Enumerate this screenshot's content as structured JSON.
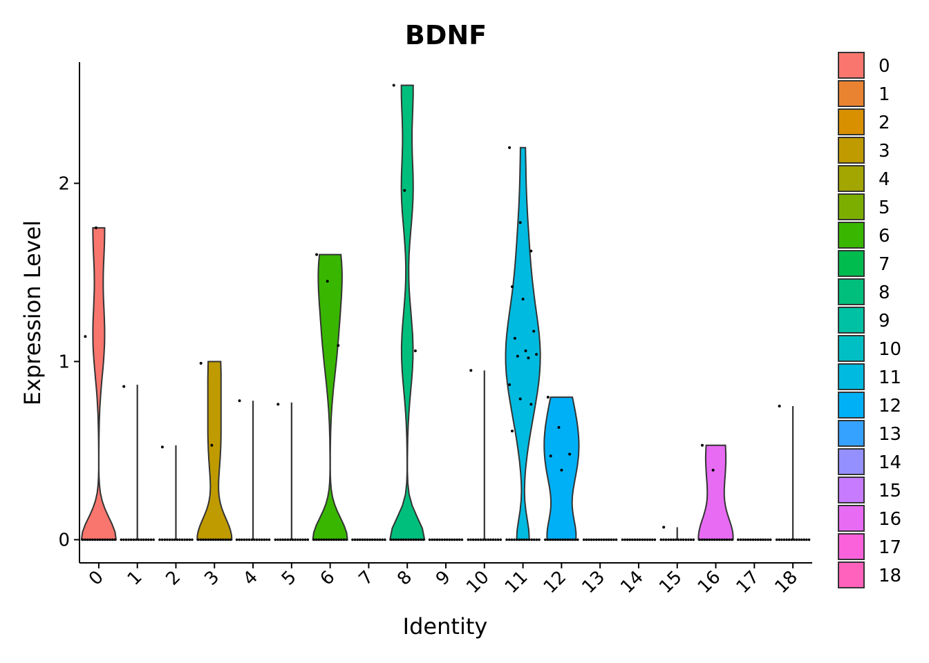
{
  "chart_data": {
    "type": "violin",
    "title": "BDNF",
    "xlabel": "Identity",
    "ylabel": "Expression Level",
    "ylim": [
      -0.13,
      2.68
    ],
    "yticks": [
      0,
      1,
      2
    ],
    "grid": false,
    "legend_position": "right",
    "categories": [
      "0",
      "1",
      "2",
      "3",
      "4",
      "5",
      "6",
      "7",
      "8",
      "9",
      "10",
      "11",
      "12",
      "13",
      "14",
      "15",
      "16",
      "17",
      "18"
    ],
    "colors": [
      "#F8766D",
      "#EA8331",
      "#D89000",
      "#C09B00",
      "#A3A500",
      "#7CAE00",
      "#39B600",
      "#00BB4E",
      "#00BF7D",
      "#00C1A3",
      "#00BFC4",
      "#00BAE0",
      "#00B0F6",
      "#35A2FF",
      "#9590FF",
      "#C77CFF",
      "#E76BF3",
      "#FA62DB",
      "#FF62BC",
      "#FF6C91"
    ],
    "series": [
      {
        "cluster": "0",
        "max": 1.75,
        "points": [
          0,
          1.14,
          1.75
        ]
      },
      {
        "cluster": "1",
        "max": 0.87,
        "points": [
          0,
          0.86
        ]
      },
      {
        "cluster": "2",
        "max": 0.53,
        "points": [
          0,
          0.52
        ]
      },
      {
        "cluster": "3",
        "max": 1.0,
        "points": [
          0,
          0.99,
          0.53
        ]
      },
      {
        "cluster": "4",
        "max": 0.78,
        "points": [
          0,
          0.78
        ]
      },
      {
        "cluster": "5",
        "max": 0.77,
        "points": [
          0,
          0.76
        ]
      },
      {
        "cluster": "6",
        "max": 1.6,
        "points": [
          0,
          1.6,
          1.45,
          1.09
        ]
      },
      {
        "cluster": "7",
        "max": 0.0,
        "points": [
          0
        ]
      },
      {
        "cluster": "8",
        "max": 2.55,
        "points": [
          0,
          2.55,
          1.96,
          1.06
        ]
      },
      {
        "cluster": "9",
        "max": 0.0,
        "points": [
          0
        ]
      },
      {
        "cluster": "10",
        "max": 0.95,
        "points": [
          0,
          0.95
        ]
      },
      {
        "cluster": "11",
        "max": 2.2,
        "points": [
          0,
          2.2,
          1.78,
          1.62,
          1.42,
          1.35,
          1.17,
          1.13,
          1.06,
          1.04,
          1.03,
          1.02,
          0.87,
          0.79,
          0.76,
          0.61
        ]
      },
      {
        "cluster": "12",
        "max": 0.8,
        "points": [
          0,
          0.8,
          0.63,
          0.48,
          0.47,
          0.39
        ]
      },
      {
        "cluster": "13",
        "max": 0.0,
        "points": [
          0
        ]
      },
      {
        "cluster": "14",
        "max": 0.0,
        "points": [
          0
        ]
      },
      {
        "cluster": "15",
        "max": 0.07,
        "points": [
          0,
          0.07
        ]
      },
      {
        "cluster": "16",
        "max": 0.53,
        "points": [
          0,
          0.53,
          0.39
        ]
      },
      {
        "cluster": "17",
        "max": 0.0,
        "points": [
          0
        ]
      },
      {
        "cluster": "18",
        "max": 0.75,
        "points": [
          0,
          0.75
        ]
      }
    ]
  }
}
